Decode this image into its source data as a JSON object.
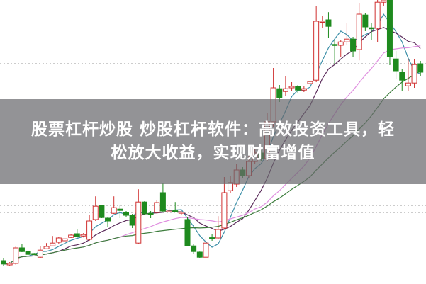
{
  "headline": {
    "line1": "股票杠杆炒股 炒股杠杆软件：高效投资工具，轻",
    "line2": "松放大收益，实现财富增值"
  },
  "chart_data": {
    "type": "candlestick",
    "grid": "horizontal dotted",
    "ylim": [
      0,
      100
    ],
    "gridlines": [
      25,
      27.5,
      77.5
    ],
    "up_color": "#d03030",
    "down_color": "#1e8a1e",
    "candles_ohlc": [
      [
        8,
        9,
        6,
        6.8
      ],
      [
        6.5,
        7.5,
        6,
        7
      ],
      [
        7,
        13,
        6.5,
        12.5
      ],
      [
        12.5,
        14,
        11,
        11.2
      ],
      [
        11.2,
        11.5,
        10,
        10.2
      ],
      [
        10.5,
        10.7,
        10,
        10.3
      ],
      [
        9.2,
        13,
        9,
        11.7
      ],
      [
        12.2,
        14.2,
        12,
        13
      ],
      [
        13.2,
        16.7,
        13,
        14.2
      ],
      [
        14.5,
        16.5,
        14,
        16
      ],
      [
        15,
        17,
        14,
        15.7
      ],
      [
        16.2,
        17.5,
        16,
        17
      ],
      [
        17.5,
        19,
        16.2,
        16.5
      ],
      [
        16.7,
        17.7,
        16.2,
        17.2
      ],
      [
        15.5,
        24.2,
        15,
        22
      ],
      [
        22.5,
        30.7,
        22,
        27.2
      ],
      [
        27.5,
        27.7,
        23,
        23.2
      ],
      [
        23,
        23.5,
        20,
        22
      ],
      [
        24.7,
        30.7,
        24.5,
        26.7
      ],
      [
        26.2,
        27.5,
        23,
        25.7
      ],
      [
        25,
        25.5,
        23.5,
        24
      ],
      [
        24,
        24.5,
        19.5,
        20.5
      ],
      [
        14.2,
        33.2,
        14,
        28.7
      ],
      [
        28.7,
        29,
        24,
        24.5
      ],
      [
        24.7,
        25.5,
        23,
        24.5
      ],
      [
        25,
        29.5,
        24.7,
        28.5
      ],
      [
        32,
        35.5,
        25,
        25.5
      ],
      [
        25.3,
        27,
        25,
        25.5
      ],
      [
        25.6,
        28.7,
        25,
        25.4
      ],
      [
        24.9,
        25.5,
        24,
        25.1
      ],
      [
        22.5,
        23.5,
        13,
        13.2
      ],
      [
        13.2,
        14,
        10.5,
        11.2
      ],
      [
        11,
        11.2,
        9,
        9.2
      ],
      [
        9.2,
        16.2,
        9,
        14.2
      ],
      [
        16.1,
        17.5,
        15,
        15.9
      ],
      [
        16,
        23.7,
        15.5,
        19
      ],
      [
        19.5,
        37.5,
        19,
        32
      ],
      [
        32.7,
        38,
        32,
        35.5
      ],
      [
        35,
        42,
        34,
        40
      ],
      [
        40,
        41,
        37,
        38
      ],
      [
        38,
        45,
        37,
        43
      ],
      [
        43,
        48,
        42,
        46
      ],
      [
        46,
        47,
        43,
        44
      ],
      [
        44,
        60,
        43,
        57
      ],
      [
        57,
        76,
        55,
        69
      ],
      [
        68.7,
        70,
        64,
        65.5
      ],
      [
        67.7,
        73,
        66,
        68.7
      ],
      [
        69,
        71,
        68,
        69.5
      ],
      [
        69.5,
        70,
        67,
        68.2
      ],
      [
        68.2,
        69.5,
        67.5,
        68.7
      ],
      [
        70.5,
        80.7,
        70,
        71.2
      ],
      [
        71.7,
        98,
        71,
        92.5
      ],
      [
        92.3,
        94.5,
        90,
        92.5
      ],
      [
        93,
        95.7,
        86.7,
        90.7
      ],
      [
        84.3,
        86,
        77.5,
        84.2
      ],
      [
        84,
        86,
        80,
        85.2
      ],
      [
        85.2,
        92,
        84,
        86.2
      ],
      [
        86.2,
        87,
        80,
        82
      ],
      [
        82.5,
        99,
        78.7,
        95
      ],
      [
        94.7,
        95.5,
        89,
        90.5
      ],
      [
        90.2,
        92,
        86,
        90
      ],
      [
        90,
        100,
        85,
        99.2
      ],
      [
        99.2,
        100,
        98,
        100
      ],
      [
        100,
        100,
        77,
        80
      ],
      [
        79.2,
        82,
        72,
        75
      ],
      [
        74.5,
        75.5,
        68,
        71.7
      ],
      [
        69.7,
        79,
        68,
        70.7
      ],
      [
        70.7,
        79,
        69,
        77.2
      ],
      [
        77.5,
        78.5,
        73,
        74.5
      ]
    ],
    "moving_averages": [
      {
        "period": 5,
        "color": "#3c8fa8"
      },
      {
        "period": 10,
        "color": "#5a2a5a"
      },
      {
        "period": 20,
        "color": "#e090e0"
      },
      {
        "period": 30,
        "color": "#3d7d3d"
      }
    ]
  }
}
